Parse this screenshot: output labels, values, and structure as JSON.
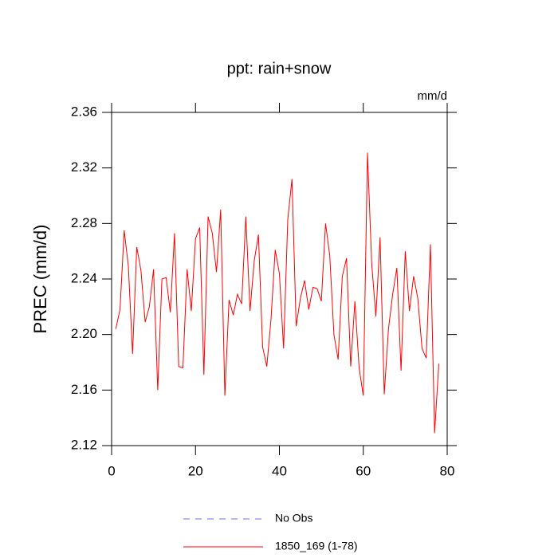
{
  "chart_data": {
    "type": "line",
    "title": "ppt: rain+snow",
    "units": "mm/d",
    "ylabel": "PREC  (mm/d)",
    "x": [
      1,
      2,
      3,
      4,
      5,
      6,
      7,
      8,
      9,
      10,
      11,
      12,
      13,
      14,
      15,
      16,
      17,
      18,
      19,
      20,
      21,
      22,
      23,
      24,
      25,
      26,
      27,
      28,
      29,
      30,
      31,
      32,
      33,
      34,
      35,
      36,
      37,
      38,
      39,
      40,
      41,
      42,
      43,
      44,
      45,
      46,
      47,
      48,
      49,
      50,
      51,
      52,
      53,
      54,
      55,
      56,
      57,
      58,
      59,
      60,
      61,
      62,
      63,
      64,
      65,
      66,
      67,
      68,
      69,
      70,
      71,
      72,
      73,
      74,
      75,
      76,
      77,
      78
    ],
    "series": [
      {
        "name": "1850_169 (1-78)",
        "color": "#ff0000",
        "values": [
          2.204,
          2.218,
          2.275,
          2.249,
          2.186,
          2.263,
          2.246,
          2.209,
          2.22,
          2.247,
          2.16,
          2.24,
          2.241,
          2.216,
          2.273,
          2.177,
          2.176,
          2.247,
          2.217,
          2.269,
          2.277,
          2.171,
          2.285,
          2.273,
          2.245,
          2.29,
          2.156,
          2.225,
          2.214,
          2.229,
          2.222,
          2.285,
          2.217,
          2.253,
          2.272,
          2.191,
          2.177,
          2.211,
          2.261,
          2.244,
          2.19,
          2.283,
          2.312,
          2.206,
          2.226,
          2.239,
          2.218,
          2.234,
          2.233,
          2.224,
          2.28,
          2.257,
          2.2,
          2.182,
          2.242,
          2.255,
          2.177,
          2.224,
          2.176,
          2.156,
          2.331,
          2.251,
          2.213,
          2.27,
          2.157,
          2.204,
          2.229,
          2.248,
          2.174,
          2.26,
          2.217,
          2.242,
          2.226,
          2.19,
          2.183,
          2.265,
          2.129,
          2.179
        ]
      }
    ],
    "legend_extra": {
      "label": "No Obs",
      "color": "#6f6fff",
      "dash": "8,7"
    },
    "xlim": [
      0,
      80
    ],
    "xticks": [
      0,
      20,
      40,
      60,
      80
    ],
    "ylim": [
      2.12,
      2.36
    ],
    "yticks": [
      2.12,
      2.16,
      {
        "value": 2.2,
        "label": "2.20"
      },
      2.24,
      2.28,
      2.32,
      2.36
    ]
  }
}
